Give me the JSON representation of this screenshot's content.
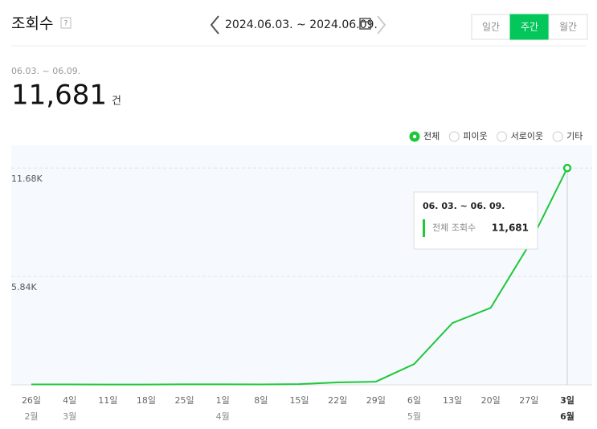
{
  "header": {
    "title": "조회수",
    "help": "?",
    "range": "2024.06.03. ~ 2024.06.09.",
    "tabs": [
      "일간",
      "주간",
      "월간"
    ],
    "active_tab": 1
  },
  "summary": {
    "period": "06.03. ~ 06.09.",
    "total": "11,681",
    "unit": "건"
  },
  "legend": {
    "options": [
      "전체",
      "피이웃",
      "서로이웃",
      "기타"
    ],
    "selected": 0
  },
  "chart_data": {
    "type": "line",
    "categories": [
      "26일",
      "4일",
      "11일",
      "18일",
      "25일",
      "1일",
      "8일",
      "15일",
      "22일",
      "29일",
      "6일",
      "13일",
      "20일",
      "27일",
      "3일"
    ],
    "month_labels": [
      "2월",
      "3월",
      null,
      null,
      null,
      "4월",
      null,
      null,
      null,
      null,
      "5월",
      null,
      null,
      null,
      "6월"
    ],
    "highlight": 14,
    "series": [
      {
        "name": "전체 조회수",
        "color": "#1fc73a",
        "values": [
          20,
          20,
          15,
          15,
          25,
          25,
          20,
          40,
          130,
          170,
          1120,
          3330,
          4150,
          7530,
          11681
        ]
      }
    ],
    "ylim": [
      0,
      12900
    ],
    "yticks": [
      {
        "value": 5840,
        "label": "5.84K"
      },
      {
        "value": 11680,
        "label": "11.68K"
      }
    ],
    "grid": true,
    "tooltip": {
      "title": "06. 03. ~ 06. 09.",
      "label": "전체 조회수",
      "value_label": "11,681"
    }
  }
}
